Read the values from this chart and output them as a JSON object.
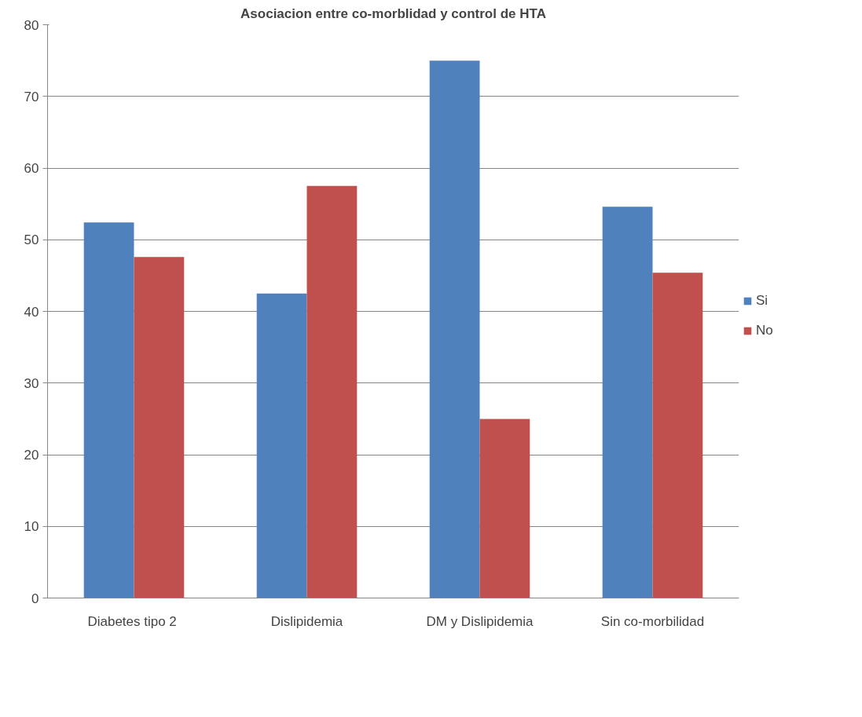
{
  "chart_data": {
    "type": "bar",
    "title": "Asociacion entre co-morblidad y control de HTA",
    "categories": [
      "Diabetes  tipo 2",
      "Dislipidemia",
      "DM y Dislipidemia",
      "Sin co-morbilidad"
    ],
    "series": [
      {
        "name": "Si",
        "color": "#4f81bd",
        "values": [
          52.4,
          42.5,
          75,
          54.6
        ]
      },
      {
        "name": "No",
        "color": "#c0504d",
        "values": [
          47.6,
          57.5,
          25,
          45.4
        ]
      }
    ],
    "ylim": [
      0,
      80
    ],
    "yticks": [
      0,
      10,
      20,
      30,
      40,
      50,
      60,
      70,
      80
    ],
    "grid": "y",
    "legend": "right"
  }
}
